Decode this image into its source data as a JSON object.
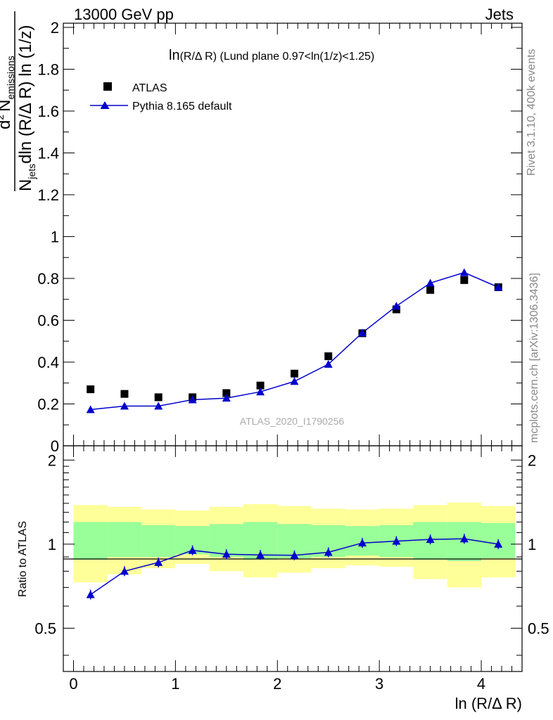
{
  "header": {
    "energy": "13000 GeV pp",
    "category": "Jets"
  },
  "side_labels": {
    "rivet": "Rivet 3.1.10,  400k events",
    "mcplots": "mcplots.cern.ch [arXiv:1306.3436]"
  },
  "watermark": "ATLAS_2020_I1790256",
  "plot_title": {
    "prefix": "ln",
    "var": "(R/Δ R)",
    "rest": " (Lund plane 0.97<ln(1/z)<1.25)"
  },
  "legend": {
    "data_label": "ATLAS",
    "mc_label": "Pythia 8.165 default"
  },
  "y_axis_main": {
    "numerator": "1",
    "denominator_N": "N",
    "denominator_sub": "jets",
    "denominator_rest": "dln (R/Δ R) ln (1/z)",
    "d2": "d",
    "d2_sup": "2",
    "N_emissions": "N",
    "N_emissions_sub": "emissions"
  },
  "y_axis_ratio": "Ratio to ATLAS",
  "x_axis": "ln (R/Δ R)",
  "colors": {
    "mc": "#0000cc",
    "data": "#000000",
    "band_inner": "#99ff99",
    "band_outer": "#ffff99",
    "side_text": "#888888"
  },
  "chart_data": [
    {
      "type": "scatter",
      "title": "ln(R/Δ R) (Lund plane 0.97<ln(1/z)<1.25)",
      "xlabel": "ln (R/Δ R)",
      "ylabel": "1/N_jets d²N_emissions / dln(R/ΔR) ln(1/z)",
      "xlim": [
        -0.1,
        4.4
      ],
      "ylim": [
        0,
        2.02
      ],
      "x_ticks": [
        "0",
        "1",
        "2",
        "3",
        "4"
      ],
      "y_ticks": [
        "0",
        "0.2",
        "0.4",
        "0.6",
        "0.8",
        "1",
        "1.2",
        "1.4",
        "1.6",
        "1.8",
        "2"
      ],
      "bin_edges": [
        0.0,
        0.333,
        0.667,
        1.0,
        1.333,
        1.667,
        2.0,
        2.333,
        2.667,
        3.0,
        3.333,
        3.667,
        4.0,
        4.333
      ],
      "x": [
        0.167,
        0.5,
        0.833,
        1.167,
        1.5,
        1.833,
        2.167,
        2.5,
        2.833,
        3.167,
        3.5,
        3.833,
        4.167
      ],
      "series": [
        {
          "name": "ATLAS",
          "marker": "square",
          "values": [
            0.27,
            0.248,
            0.232,
            0.232,
            0.252,
            0.288,
            0.345,
            0.428,
            0.538,
            0.652,
            0.745,
            0.792,
            0.758
          ]
        },
        {
          "name": "Pythia 8.165 default",
          "marker": "triangle",
          "line": true,
          "values": [
            0.173,
            0.19,
            0.19,
            0.22,
            0.228,
            0.258,
            0.308,
            0.39,
            0.54,
            0.668,
            0.778,
            0.828,
            0.758
          ]
        }
      ]
    },
    {
      "type": "line",
      "title": "Ratio to ATLAS",
      "xlabel": "ln (R/Δ R)",
      "ylabel": "Ratio to ATLAS",
      "xlim": [
        -0.1,
        4.4
      ],
      "ylim": [
        0.35,
        2.25
      ],
      "y_ticks": [
        "0.5",
        "1",
        "2"
      ],
      "x": [
        0.167,
        0.5,
        0.833,
        1.167,
        1.5,
        1.833,
        2.167,
        2.5,
        2.833,
        3.167,
        3.5,
        3.833,
        4.167
      ],
      "series": [
        {
          "name": "Pythia 8.165 default",
          "values": [
            0.66,
            0.8,
            0.86,
            0.95,
            0.92,
            0.915,
            0.912,
            0.935,
            1.01,
            1.025,
            1.04,
            1.045,
            1.0
          ]
        }
      ],
      "band_inner": [
        [
          0.88,
          1.2
        ],
        [
          0.9,
          1.2
        ],
        [
          0.9,
          1.17
        ],
        [
          0.92,
          1.16
        ],
        [
          0.9,
          1.18
        ],
        [
          0.88,
          1.2
        ],
        [
          0.89,
          1.18
        ],
        [
          0.9,
          1.17
        ],
        [
          0.91,
          1.16
        ],
        [
          0.9,
          1.17
        ],
        [
          0.88,
          1.2
        ],
        [
          0.87,
          1.2
        ],
        [
          0.89,
          1.19
        ]
      ],
      "band_outer": [
        [
          0.73,
          1.38
        ],
        [
          0.78,
          1.36
        ],
        [
          0.82,
          1.33
        ],
        [
          0.85,
          1.32
        ],
        [
          0.8,
          1.36
        ],
        [
          0.76,
          1.39
        ],
        [
          0.79,
          1.37
        ],
        [
          0.82,
          1.34
        ],
        [
          0.84,
          1.33
        ],
        [
          0.83,
          1.34
        ],
        [
          0.75,
          1.38
        ],
        [
          0.7,
          1.41
        ],
        [
          0.76,
          1.37
        ]
      ]
    }
  ]
}
